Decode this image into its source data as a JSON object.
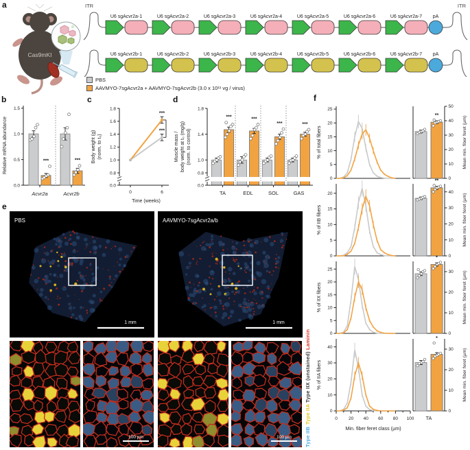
{
  "panels": {
    "a": "a",
    "b": "b",
    "c": "c",
    "d": "d",
    "e": "e",
    "f": "f"
  },
  "colors": {
    "pbs_gray": "#CBCCCD",
    "pbs_stroke": "#808182",
    "aav_orange": "#F2A341",
    "aav_stroke": "#6b6b6b",
    "hist_gray": "#C8C9CA",
    "green": "#3CB54A",
    "pink": "#F4AFB9",
    "olive": "#D4C24E",
    "blue_pa": "#4BA9DC",
    "laminin_red": "#DA3327",
    "type_iib_blue": "#4FACE4",
    "type_iia_yellow": "#E3C926",
    "type_iix": "#3a3a3a"
  },
  "panel_a": {
    "label": "a",
    "mouse_label": "Cas9mKI",
    "itr_left": "ITR",
    "itr_right": "ITR",
    "row1_labels": [
      "U6 sgAcvr2a-1",
      "U6 sgAcvr2a-2",
      "U6 sgAcvr2a-3",
      "U6 sgAcvr2a-4",
      "U6 sgAcvr2a-5",
      "U6 sgAcvr2a-6",
      "U6 sgAcvr2a-7"
    ],
    "row1_pa": "pA",
    "row2_labels": [
      "U6 sgAcvr2b-1",
      "U6 sgAcvr2b-2",
      "U6 sgAcvr2b-3",
      "U6 sgAcvr2b-4",
      "U6 sgAcvr2b-5",
      "U6 sgAcvr2b-6",
      "U6 sgAcvr2b-7"
    ],
    "row2_pa": "pA",
    "legend": [
      {
        "label": "PBS"
      },
      {
        "label": "AAVMYO-7sgAcvr2a + AAVMYO-7sgAcvr2b (3.0 x 10¹¹ vg / virus)"
      }
    ]
  },
  "panel_e": {
    "label": "e",
    "images": [
      {
        "title": "PBS",
        "scalebar": "1 mm"
      },
      {
        "title": "AAVMYO-7sgAcvr2a/b",
        "scalebar": "1 mm"
      }
    ],
    "inset_scalebar": "100 µm",
    "stain_legend": [
      {
        "text": "Type IIB",
        "color": "#4FACE4"
      },
      {
        "text": "Type IIA",
        "color": "#E3C926"
      },
      {
        "text": "Type IIX (unstained)",
        "color": "#3a3a3a"
      },
      {
        "text": "Laminin",
        "color": "#DA3327"
      }
    ]
  },
  "chart_data": {
    "b": {
      "type": "bar",
      "ylabel": "Relative mRNA abundance",
      "yticks": [
        "0.0",
        "0.5",
        "1.0",
        "1.5"
      ],
      "ylim": [
        0,
        1.55
      ],
      "categories": [
        "Acvr2a",
        "Acvr2b"
      ],
      "series": [
        {
          "name": "PBS",
          "values": [
            1.0,
            1.0
          ],
          "err": [
            0.06,
            0.12
          ],
          "points": [
            [
              0.88,
              0.9,
              0.95,
              1.12,
              1.18
            ],
            [
              0.75,
              0.9,
              1.02,
              1.12,
              1.38
            ]
          ]
        },
        {
          "name": "AAV",
          "values": [
            0.19,
            0.28
          ],
          "err": [
            0.04,
            0.05
          ],
          "points": [
            [
              0.13,
              0.15,
              0.18,
              0.2,
              0.37
            ],
            [
              0.2,
              0.25,
              0.3,
              0.38
            ]
          ]
        }
      ],
      "sig": [
        "***",
        "***"
      ]
    },
    "c": {
      "type": "line",
      "ylabel_lines": [
        "Body weight (g)",
        "(norm. to t₀)"
      ],
      "xlabel": "Time (weeks)",
      "xticks": [
        "0",
        "6"
      ],
      "x": [
        0,
        6
      ],
      "yticks": [
        "0.0",
        "0.8",
        "1.0",
        "1.2",
        "1.4",
        "1.6",
        "1.8"
      ],
      "series": [
        {
          "name": "PBS",
          "values": [
            1.0,
            1.35
          ],
          "err": [
            0,
            0.03
          ],
          "sig": "***"
        },
        {
          "name": "AAV",
          "values": [
            1.0,
            1.62
          ],
          "err": [
            0,
            0.03
          ],
          "sig": "***"
        }
      ],
      "bracket_sig": "***"
    },
    "d": {
      "type": "bar",
      "ylabel_lines": [
        "Muscle mass /",
        "body weight at t₀ (mg/g)",
        "(norm. to control)"
      ],
      "yticks": [
        "0.0",
        "0.8",
        "1.0",
        "1.4",
        "1.8"
      ],
      "categories": [
        "TA",
        "EDL",
        "SOL",
        "GAS"
      ],
      "series": [
        {
          "name": "PBS",
          "values": [
            1.0,
            1.0,
            1.0,
            1.0
          ],
          "err": [
            0.03,
            0.05,
            0.03,
            0.03
          ],
          "points": [
            [
              0.95,
              0.98,
              1.0,
              1.03,
              1.05
            ],
            [
              0.92,
              0.97,
              1.0,
              1.05,
              1.08
            ],
            [
              0.95,
              0.98,
              1.0,
              1.04,
              1.06
            ],
            [
              0.95,
              0.99,
              1.0,
              1.03,
              1.06
            ]
          ]
        },
        {
          "name": "AAV",
          "values": [
            1.47,
            1.45,
            1.36,
            1.4
          ],
          "err": [
            0.04,
            0.04,
            0.04,
            0.03
          ],
          "points": [
            [
              1.35,
              1.4,
              1.45,
              1.52,
              1.55,
              1.58
            ],
            [
              1.33,
              1.38,
              1.47,
              1.5,
              1.55
            ],
            [
              1.25,
              1.3,
              1.35,
              1.42,
              1.48
            ],
            [
              1.33,
              1.38,
              1.4,
              1.44,
              1.47
            ]
          ]
        }
      ],
      "sig": [
        "***",
        "***",
        "***",
        "***"
      ]
    },
    "f": {
      "type": "histogram+bar",
      "xlabel": "Min. fiber feret class (µm)",
      "xticks": [
        "0",
        "20",
        "40",
        "60",
        "80",
        "100"
      ],
      "bar_xlabel": "TA",
      "bar_ylabel": "Mean min. fiber feret (µm)",
      "hist_x": [
        0,
        5,
        10,
        15,
        20,
        25,
        30,
        35,
        40,
        45,
        50,
        55,
        60,
        65,
        70,
        75,
        80
      ],
      "subpanels": [
        {
          "ylabel": "% of total fibers",
          "ylim": 26,
          "yticks": [
            "0",
            "5",
            "10",
            "15",
            "20",
            "25"
          ],
          "hist_pbs": [
            0,
            0,
            0.5,
            2,
            7,
            15,
            20.5,
            18,
            11,
            5,
            2,
            0.8,
            0.3,
            0.1,
            0,
            0,
            0
          ],
          "hist_aav": [
            0,
            0,
            0.2,
            1,
            3,
            7,
            12,
            16,
            17.5,
            14.5,
            10,
            6,
            3,
            1.5,
            0.7,
            0.2,
            0
          ],
          "bars": {
            "ylim": 50,
            "yticks": [
              "0",
              "10",
              "20",
              "30",
              "40",
              "50"
            ],
            "values": [
              32.5,
              39
            ],
            "err": [
              1,
              1
            ],
            "points": [
              [
                31,
                32,
                32.5,
                33,
                34
              ],
              [
                36.5,
                38.5,
                39,
                39.5,
                40,
                40.5
              ]
            ],
            "sig": "**"
          }
        },
        {
          "ylabel": "% of IIB fibers",
          "ylim": 23,
          "yticks": [
            "0",
            "5",
            "10",
            "15",
            "20"
          ],
          "hist_pbs": [
            0,
            0,
            0.2,
            1,
            3,
            9,
            17,
            21.5,
            16,
            8,
            3,
            1,
            0.4,
            0.1,
            0,
            0,
            0
          ],
          "hist_aav": [
            0,
            0,
            0,
            0.5,
            1.5,
            4,
            9,
            15,
            19,
            16,
            10,
            5,
            2,
            1,
            0.4,
            0.1,
            0
          ],
          "bars": {
            "ylim": 45,
            "yticks": [
              "0",
              "10",
              "20",
              "30",
              "40"
            ],
            "values": [
              36,
              42.5
            ],
            "err": [
              0.8,
              1
            ],
            "points": [
              [
                35,
                35.5,
                36,
                36.5,
                37
              ],
              [
                40,
                41.5,
                42.5,
                43,
                43.5,
                44
              ]
            ],
            "sig": "**"
          }
        },
        {
          "ylabel": "% of IIX fibers",
          "ylim": 28,
          "yticks": [
            "0",
            "5",
            "10",
            "15",
            "20",
            "25"
          ],
          "hist_pbs": [
            0,
            0,
            0.5,
            3,
            13,
            26,
            21,
            11,
            4,
            1.5,
            0.4,
            0.1,
            0,
            0,
            0,
            0,
            0
          ],
          "hist_aav": [
            0,
            0,
            0.2,
            1.5,
            6,
            14,
            20,
            17,
            10,
            5,
            2.5,
            1,
            0.4,
            0.1,
            0,
            0,
            0
          ],
          "bars": {
            "ylim": 35,
            "yticks": [
              "0",
              "10",
              "20",
              "30"
            ],
            "values": [
              29,
              33.5
            ],
            "err": [
              0.9,
              0.8
            ],
            "points": [
              [
                27,
                28,
                29,
                30,
                30.5,
                31
              ],
              [
                31.5,
                32.5,
                33.5,
                34,
                34.5
              ]
            ],
            "sig": "*"
          }
        },
        {
          "ylabel": "% of IIA fibers",
          "ylim": 45,
          "yticks": [
            "0",
            "10",
            "20",
            "30",
            "40"
          ],
          "hist_pbs": [
            0,
            0,
            1,
            5,
            18,
            38,
            27,
            10,
            3,
            0.8,
            0.2,
            0,
            0,
            0,
            0,
            0,
            0
          ],
          "hist_aav": [
            0,
            0,
            0.5,
            2,
            8,
            22,
            30,
            22,
            10,
            3,
            1,
            0.3,
            0,
            0,
            0,
            0,
            0
          ],
          "bars": {
            "ylim": 35,
            "yticks": [
              "0",
              "10",
              "20",
              "30"
            ],
            "values": [
              23.5,
              27.5
            ],
            "err": [
              1,
              0.8
            ],
            "points": [
              [
                22,
                23,
                23.5,
                24,
                25
              ],
              [
                25.5,
                26.5,
                27,
                27.5,
                28,
                33
              ]
            ],
            "sig": "*"
          }
        }
      ]
    }
  }
}
